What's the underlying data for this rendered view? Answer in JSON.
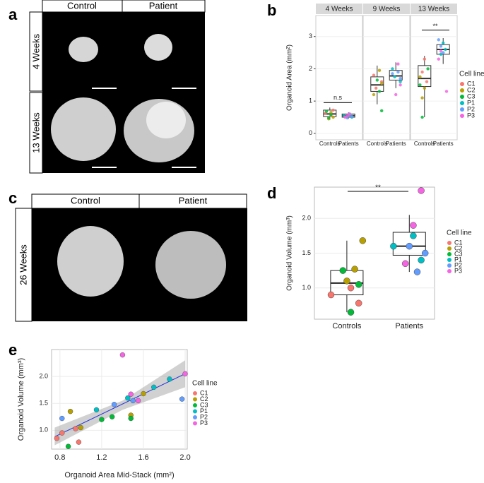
{
  "panel_labels": [
    "a",
    "b",
    "c",
    "d",
    "e"
  ],
  "image_a": {
    "columns": [
      "Control",
      "Patient"
    ],
    "rows": [
      "4 Weeks",
      "13 Weeks"
    ]
  },
  "image_c": {
    "columns": [
      "Control",
      "Patient"
    ],
    "rows": [
      "26 Weeks"
    ]
  },
  "chart_data": [
    {
      "type": "facet-box",
      "y_label": "Organoid Area (mm²)",
      "facets": [
        "4 Weeks",
        "9 Weeks",
        "13 Weeks"
      ],
      "ylim": [
        -0.2,
        3.65
      ],
      "yticks": [
        0,
        1,
        2,
        3
      ],
      "legend_title": "Cell line",
      "annotations": [
        "n.s",
        "**"
      ],
      "groups": [
        {
          "category": "Controls",
          "series": [
            {
              "name": "C1",
              "color": "#F8766D",
              "values": [
                [
                  0.62,
                  0.72,
                  0.55
                ],
                [
                  1.4,
                  1.8,
                  1.6
                ],
                [
                  1.6,
                  2.3,
                  1.9
                ]
              ]
            },
            {
              "name": "C2",
              "color": "#B79F00",
              "values": [
                [
                  0.5,
                  0.65,
                  0.45
                ],
                [
                  1.2,
                  1.55,
                  1.95
                ],
                [
                  1.4,
                  1.1,
                  1.75
                ]
              ]
            },
            {
              "name": "C3",
              "color": "#00BA38",
              "values": [
                [
                  0.58,
                  0.48,
                  0.68
                ],
                [
                  0.7,
                  1.3,
                  1.65
                ],
                [
                  0.5,
                  1.5,
                  2.0
                ]
              ]
            }
          ]
        },
        {
          "category": "Patients",
          "series": [
            {
              "name": "P1",
              "color": "#00BFC4",
              "values": [
                [
                  0.55,
                  0.5,
                  0.6
                ],
                [
                  1.75,
                  2.0,
                  1.6
                ],
                [
                  2.6,
                  2.8,
                  2.45
                ]
              ]
            },
            {
              "name": "P2",
              "color": "#619CFF",
              "values": [
                [
                  0.52,
                  0.58,
                  0.48
                ],
                [
                  1.85,
                  1.7,
                  1.9
                ],
                [
                  2.5,
                  2.7,
                  2.9
                ]
              ]
            },
            {
              "name": "P3",
              "color": "#F564E3",
              "values": [
                [
                  0.6,
                  0.55,
                  0.5
                ],
                [
                  1.5,
                  2.15,
                  1.2
                ],
                [
                  2.55,
                  2.3,
                  1.3
                ]
              ]
            }
          ]
        }
      ],
      "boxes": [
        [
          {
            "whisker_low": 0.42,
            "q1": 0.52,
            "median": 0.6,
            "q3": 0.72,
            "whisker_high": 0.8
          },
          {
            "whisker_low": 0.45,
            "q1": 0.5,
            "median": 0.55,
            "q3": 0.6,
            "whisker_high": 0.65
          }
        ],
        [
          {
            "whisker_low": 0.9,
            "q1": 1.3,
            "median": 1.5,
            "q3": 1.75,
            "whisker_high": 2.1
          },
          {
            "whisker_low": 1.4,
            "q1": 1.65,
            "median": 1.78,
            "q3": 1.95,
            "whisker_high": 2.2
          }
        ],
        [
          {
            "whisker_low": 0.5,
            "q1": 1.45,
            "median": 1.7,
            "q3": 2.1,
            "whisker_high": 2.4
          },
          {
            "whisker_low": 2.15,
            "q1": 2.45,
            "median": 2.6,
            "q3": 2.75,
            "whisker_high": 2.95
          }
        ]
      ]
    },
    {
      "type": "box",
      "y_label": "Organoid Volume (mm³)",
      "ylim": [
        0.55,
        2.45
      ],
      "yticks": [
        {
          "value": 1,
          "label": "1.0"
        },
        1.5,
        {
          "value": 2,
          "label": "2.0"
        }
      ],
      "legend_title": "Cell line",
      "annotations": [
        "**"
      ],
      "groups": [
        {
          "category": "Controls",
          "series": [
            {
              "name": "C1",
              "color": "#F8766D",
              "values": [
                0.9,
                0.78,
                1.0
              ]
            },
            {
              "name": "C2",
              "color": "#B79F00",
              "values": [
                1.68,
                1.27,
                1.1
              ]
            },
            {
              "name": "C3",
              "color": "#00BA38",
              "values": [
                1.05,
                0.65,
                1.25
              ]
            }
          ]
        },
        {
          "category": "Patients",
          "series": [
            {
              "name": "P1",
              "color": "#00BFC4",
              "values": [
                1.6,
                1.4,
                1.75
              ]
            },
            {
              "name": "P2",
              "color": "#619CFF",
              "values": [
                1.5,
                1.23,
                1.6
              ]
            },
            {
              "name": "P3",
              "color": "#F564E3",
              "values": [
                2.4,
                1.9,
                1.35
              ]
            }
          ]
        }
      ],
      "boxes": [
        {
          "whisker_low": 0.65,
          "q1": 0.9,
          "median": 1.07,
          "q3": 1.25,
          "whisker_high": 1.68
        },
        {
          "whisker_low": 1.23,
          "q1": 1.47,
          "median": 1.6,
          "q3": 1.8,
          "whisker_high": 2.05
        }
      ]
    },
    {
      "type": "scatter",
      "x_label": "Organoid Area Mid-Stack (mm²)",
      "y_label": "Organoid Volume (mm³)",
      "xlim": [
        0.72,
        2.02
      ],
      "ylim": [
        0.65,
        2.5
      ],
      "xticks": [
        0.8,
        1.2,
        1.6,
        {
          "value": 2,
          "label": "2.0"
        }
      ],
      "yticks": [
        {
          "value": 1,
          "label": "1.0"
        },
        1.5,
        {
          "value": 2,
          "label": "2.0"
        }
      ],
      "legend_title": "Cell line",
      "fit": {
        "x": [
          0.75,
          2.0
        ],
        "y": [
          0.88,
          2.05
        ]
      },
      "band": {
        "x": [
          0.75,
          1.4,
          2.0
        ],
        "lower": [
          0.72,
          1.38,
          1.8
        ],
        "upper": [
          1.05,
          1.55,
          2.3
        ]
      },
      "series": [
        {
          "name": "C1",
          "color": "#F8766D",
          "x": [
            0.77,
            0.82,
            0.95,
            0.98
          ],
          "values": [
            0.85,
            0.95,
            1.03,
            0.78
          ]
        },
        {
          "name": "C2",
          "color": "#B79F00",
          "x": [
            0.9,
            1.0,
            1.48,
            1.6
          ],
          "values": [
            1.35,
            1.05,
            1.28,
            1.68
          ]
        },
        {
          "name": "C3",
          "color": "#00BA38",
          "x": [
            0.88,
            1.2,
            1.3,
            1.48
          ],
          "values": [
            0.7,
            1.2,
            1.25,
            1.22
          ]
        },
        {
          "name": "P1",
          "color": "#00BFC4",
          "x": [
            1.15,
            1.45,
            1.85,
            1.7
          ],
          "values": [
            1.38,
            1.6,
            1.95,
            1.8
          ]
        },
        {
          "name": "P2",
          "color": "#619CFF",
          "x": [
            0.82,
            1.32,
            1.5,
            1.97
          ],
          "values": [
            1.22,
            1.48,
            1.55,
            1.58
          ]
        },
        {
          "name": "P3",
          "color": "#F564E3",
          "x": [
            1.4,
            1.48,
            1.55,
            2.0
          ],
          "values": [
            2.4,
            1.67,
            1.55,
            2.05
          ]
        }
      ]
    }
  ]
}
